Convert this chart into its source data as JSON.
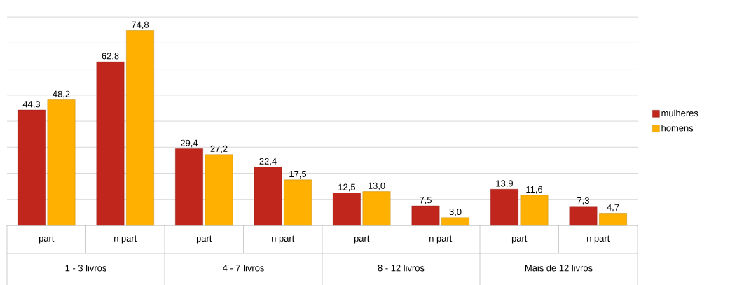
{
  "chart_data": {
    "type": "bar",
    "categories": [
      "part",
      "n part",
      "part",
      "n part",
      "part",
      "n part",
      "part",
      "n part"
    ],
    "series": [
      {
        "name": "mulheres",
        "color": "#c0261b",
        "values": [
          44.3,
          62.8,
          29.4,
          22.4,
          12.5,
          7.5,
          13.9,
          7.3
        ],
        "value_labels": [
          "44,3",
          "62,8",
          "29,4",
          "22,4",
          "12,5",
          "7,5",
          "13,9",
          "7,3"
        ]
      },
      {
        "name": "homens",
        "color": "#ffb000",
        "values": [
          48.2,
          74.8,
          27.2,
          17.5,
          13.0,
          3.0,
          11.6,
          4.7
        ],
        "value_labels": [
          "48,2",
          "74,8",
          "27,2",
          "17,5",
          "13,0",
          "3,0",
          "11,6",
          "4,7"
        ]
      }
    ],
    "annotations": [
      "1 - 3 livros",
      "4 - 7 livros",
      "8 - 12 livros",
      "Mais de 12 livros"
    ],
    "grid": "y",
    "legend": "right",
    "tick_labels": "x"
  }
}
